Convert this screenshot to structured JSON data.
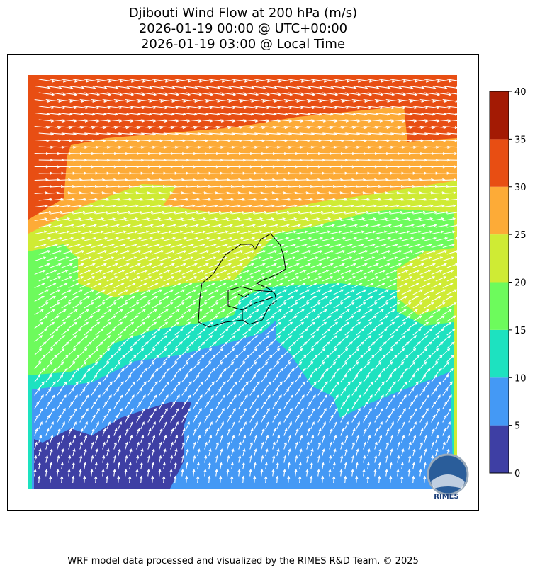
{
  "title": [
    "Djibouti Wind Flow at 200 hPa (m/s)",
    "2026-01-19 00:00 @ UTC+00:00",
    "2026-01-19 03:00 @ Local Time"
  ],
  "colorbar": {
    "ticks": [
      0,
      5,
      10,
      15,
      20,
      25,
      30,
      35,
      40
    ],
    "colors": [
      "#3e3fa4",
      "#4499f5",
      "#1de2c0",
      "#6dfb5c",
      "#cfeb34",
      "#fdab37",
      "#e84e13",
      "#a31a04"
    ]
  },
  "logo": "RIMES",
  "footer": "WRF model data processed and visualized by the RIMES R&D Team. © 2025"
}
